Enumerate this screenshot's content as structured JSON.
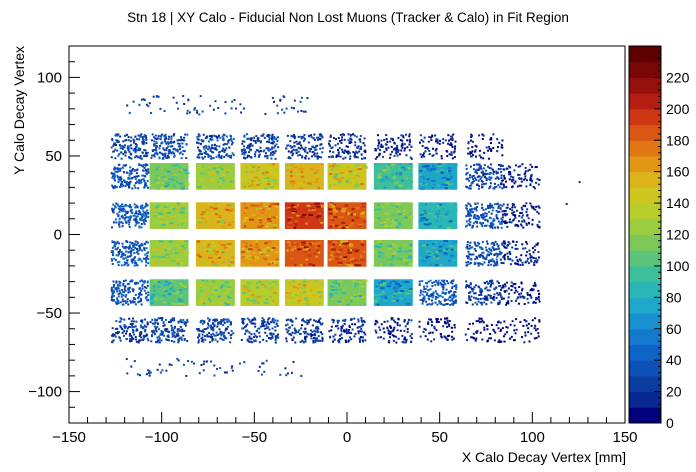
{
  "chart_data": {
    "type": "heatmap",
    "title": "Stn 18 | XY Calo - Fiducial Non Lost Muons (Tracker & Calo) in Fit Region",
    "xlabel": "X Calo Decay Vertex [mm]",
    "ylabel": "Y Calo Decay Vertex",
    "xlim": [
      -150,
      150
    ],
    "ylim": [
      -120,
      120
    ],
    "x_ticks": [
      -150,
      -100,
      -50,
      0,
      50,
      100,
      150
    ],
    "x_tick_labels": [
      "−150",
      "−100",
      "−50",
      "0",
      "50",
      "100",
      "150"
    ],
    "y_ticks": [
      -100,
      -50,
      0,
      50,
      100
    ],
    "y_tick_labels": [
      "−100",
      "−50",
      "0",
      "50",
      "100"
    ],
    "z_range": [
      0,
      240
    ],
    "z_ticks": [
      0,
      20,
      40,
      60,
      80,
      100,
      120,
      140,
      160,
      180,
      200,
      220
    ],
    "z_tick_labels": [
      "0",
      "20",
      "40",
      "60",
      "80",
      "100",
      "120",
      "140",
      "160",
      "180",
      "200",
      "220"
    ],
    "palette": [
      "#00007e",
      "#06288f",
      "#0b3ca0",
      "#0c50b8",
      "#0e64c6",
      "#1479cc",
      "#1a8fcf",
      "#1fa7c9",
      "#2ab6b6",
      "#3ebf9b",
      "#5cc47a",
      "#7cc95a",
      "#9acd40",
      "#b6cd2c",
      "#cdc61f",
      "#dbb31a",
      "#e29616",
      "#e07714",
      "#d95614",
      "#cf3614",
      "#b41d12",
      "#93100c",
      "#780805",
      "#5e0000"
    ],
    "columns_x": [
      -117,
      -96,
      -71,
      -47,
      -23,
      0,
      25,
      49,
      74,
      94
    ],
    "rows_y": [
      56,
      37,
      12,
      -12,
      -37,
      -61
    ],
    "cell_values": [
      [
        40,
        45,
        42,
        40,
        35,
        28,
        22,
        14,
        6,
        0
      ],
      [
        50,
        110,
        125,
        145,
        150,
        140,
        95,
        70,
        40,
        18
      ],
      [
        55,
        125,
        150,
        165,
        190,
        185,
        115,
        80,
        50,
        20
      ],
      [
        55,
        125,
        150,
        165,
        185,
        185,
        110,
        75,
        45,
        20
      ],
      [
        50,
        100,
        120,
        135,
        140,
        110,
        75,
        55,
        35,
        15
      ],
      [
        35,
        42,
        40,
        38,
        32,
        25,
        18,
        10,
        6,
        3
      ]
    ],
    "grid": false
  }
}
